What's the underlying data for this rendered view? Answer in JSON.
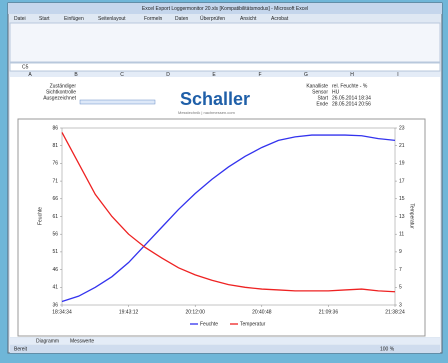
{
  "window": {
    "title": "Excel Export Loggermonitor 20.xls [Kompatibilitätsmodus] - Microsoft Excel",
    "tabs": [
      "Datei",
      "Start",
      "Einfügen",
      "Seitenlayout",
      "Formeln",
      "Daten",
      "Überprüfen",
      "Ansicht",
      "Acrobat"
    ],
    "cell_ref": "C5",
    "columns": [
      "A",
      "B",
      "C",
      "D",
      "E",
      "F",
      "G",
      "H",
      "I"
    ]
  },
  "sheet": {
    "labels": [
      "Zuständiger",
      "Sichtkontrolle",
      "Ausgezeichnet"
    ],
    "info": [
      [
        "Kanalliste",
        "rel. Feuchte - %"
      ],
      [
        "Sensor",
        "HU"
      ],
      [
        "Start",
        "26.05.2014 18:34"
      ],
      [
        "Ende",
        "28.05.2014 20:56"
      ]
    ],
    "logo": "Schaller",
    "tagline": "Messtechnik | nachmessen.com",
    "sheet_tabs": [
      "Diagramm",
      "Messwerte"
    ],
    "status": "Bereit",
    "zoom": "100 %"
  },
  "chart_data": {
    "type": "line",
    "x_label": "",
    "y_label": "Feuchte",
    "y2_label": "Temperatur",
    "x": [
      0,
      10,
      20,
      30,
      40,
      50,
      60,
      70,
      80,
      90,
      100,
      110,
      120,
      130,
      140,
      150,
      160,
      170,
      180,
      190,
      200
    ],
    "series": [
      {
        "name": "Feuchte",
        "color": "#3333ee",
        "values": [
          37,
          38.5,
          41,
          44,
          48,
          53,
          58,
          63,
          67.5,
          71.5,
          75,
          78,
          80.5,
          82.5,
          83.5,
          84,
          84,
          84,
          83.8,
          83,
          82.5
        ]
      },
      {
        "name": "Temperatur",
        "color": "#ee2222",
        "axis": "y2",
        "values": [
          22.5,
          19,
          15.5,
          13,
          11,
          9.5,
          8.3,
          7.2,
          6.4,
          5.8,
          5.3,
          5,
          4.8,
          4.7,
          4.6,
          4.6,
          4.6,
          4.7,
          4.8,
          4.6,
          4.5
        ]
      }
    ],
    "xlim": [
      0,
      200
    ],
    "xticks": [
      {
        "value": 0,
        "label": "18:34:34"
      },
      {
        "value": 40,
        "label": "19:43:12"
      },
      {
        "value": 80,
        "label": "20:12:00"
      },
      {
        "value": 120,
        "label": "20:40:48"
      },
      {
        "value": 160,
        "label": "21:09:36"
      },
      {
        "value": 200,
        "label": "21:38:24"
      }
    ],
    "ylim": [
      36,
      86
    ],
    "yticks": [
      36,
      41,
      46,
      51,
      56,
      61,
      66,
      71,
      76,
      81,
      86
    ],
    "y2lim": [
      3,
      23
    ],
    "y2ticks": [
      3,
      5,
      7,
      9,
      11,
      13,
      15,
      17,
      19,
      21,
      23
    ]
  }
}
